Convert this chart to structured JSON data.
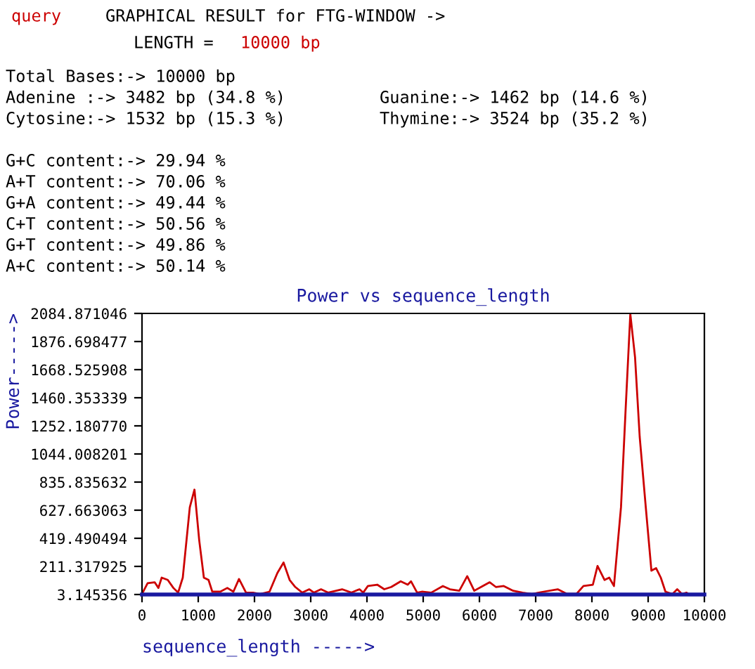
{
  "chart_data": {
    "type": "line",
    "title": "Power vs sequence_length",
    "xlabel": "sequence_length ----->",
    "ylabel": "Power----->",
    "annotations": [
      "query",
      "GRAPHICAL RESULT for FTG-WINDOW ->",
      "LENGTH = ",
      "10000 bp",
      "Total Bases:-> 10000 bp",
      "Adenine :-> 3482 bp (34.8 %)",
      "Guanine:-> 1462 bp (14.6 %)",
      "Cytosine:-> 1532 bp (15.3 %)",
      "Thymine:-> 3524 bp (35.2 %)",
      "G+C content:-> 29.94 %",
      "A+T content:-> 70.06 %",
      "G+A content:-> 49.44 %",
      "C+T content:-> 50.56 %",
      "G+T content:-> 49.86 %",
      "A+C content:-> 50.14 %"
    ],
    "x": [
      0,
      100,
      225,
      292,
      350,
      458,
      558,
      642,
      725,
      850,
      933,
      1017,
      1100,
      1183,
      1250,
      1392,
      1517,
      1625,
      1725,
      1850,
      1975,
      2100,
      2267,
      2408,
      2517,
      2625,
      2725,
      2850,
      2975,
      3058,
      3183,
      3308,
      3558,
      3725,
      3867,
      3933,
      4017,
      4183,
      4308,
      4433,
      4600,
      4725,
      4783,
      4892,
      4975,
      5142,
      5350,
      5475,
      5642,
      5783,
      5908,
      6058,
      6183,
      6292,
      6433,
      6600,
      6767,
      6933,
      7142,
      7392,
      7558,
      7725,
      7850,
      8017,
      8100,
      8225,
      8308,
      8392,
      8517,
      8600,
      8683,
      8767,
      8850,
      8958,
      9058,
      9142,
      9225,
      9308,
      9433,
      9517,
      9600,
      9683,
      9725
    ],
    "series": [
      {
        "color": "#cc0000",
        "values": [
          7,
          87,
          94,
          52,
          128,
          111,
          52,
          17,
          128,
          649,
          780,
          406,
          128,
          111,
          24,
          24,
          52,
          24,
          118,
          17,
          17,
          7,
          24,
          163,
          240,
          111,
          59,
          17,
          42,
          17,
          42,
          17,
          42,
          17,
          42,
          17,
          66,
          76,
          42,
          59,
          101,
          76,
          101,
          17,
          24,
          17,
          66,
          42,
          31,
          139,
          31,
          66,
          94,
          59,
          66,
          31,
          17,
          7,
          24,
          42,
          7,
          7,
          66,
          76,
          215,
          111,
          128,
          66,
          649,
          1378,
          2080,
          1760,
          1169,
          649,
          180,
          198,
          128,
          24,
          7,
          42,
          7,
          17,
          4
        ]
      }
    ],
    "xlim": [
      0,
      10000
    ],
    "xticks": [
      0,
      1000,
      2000,
      3000,
      4000,
      5000,
      6000,
      7000,
      8000,
      9000,
      10000
    ],
    "ylim": [
      3.145356,
      2084.871046
    ],
    "yticks": [
      {
        "value": 3.145356,
        "label": "3.145356"
      },
      {
        "value": 211.317925,
        "label": "211.317925"
      },
      {
        "value": 419.490494,
        "label": "419.490494"
      },
      {
        "value": 627.663063,
        "label": "627.663063"
      },
      {
        "value": 835.835632,
        "label": "835.835632"
      },
      {
        "value": 1044.008201,
        "label": "1044.008201"
      },
      {
        "value": 1252.18077,
        "label": "1252.180770"
      },
      {
        "value": 1460.353339,
        "label": "1460.353339"
      },
      {
        "value": 1668.525908,
        "label": "1668.525908"
      },
      {
        "value": 1876.698477,
        "label": "1876.698477"
      },
      {
        "value": 2084.871046,
        "label": "2084.871046"
      }
    ],
    "grid": false,
    "marker": "none",
    "line_style": "solid"
  }
}
